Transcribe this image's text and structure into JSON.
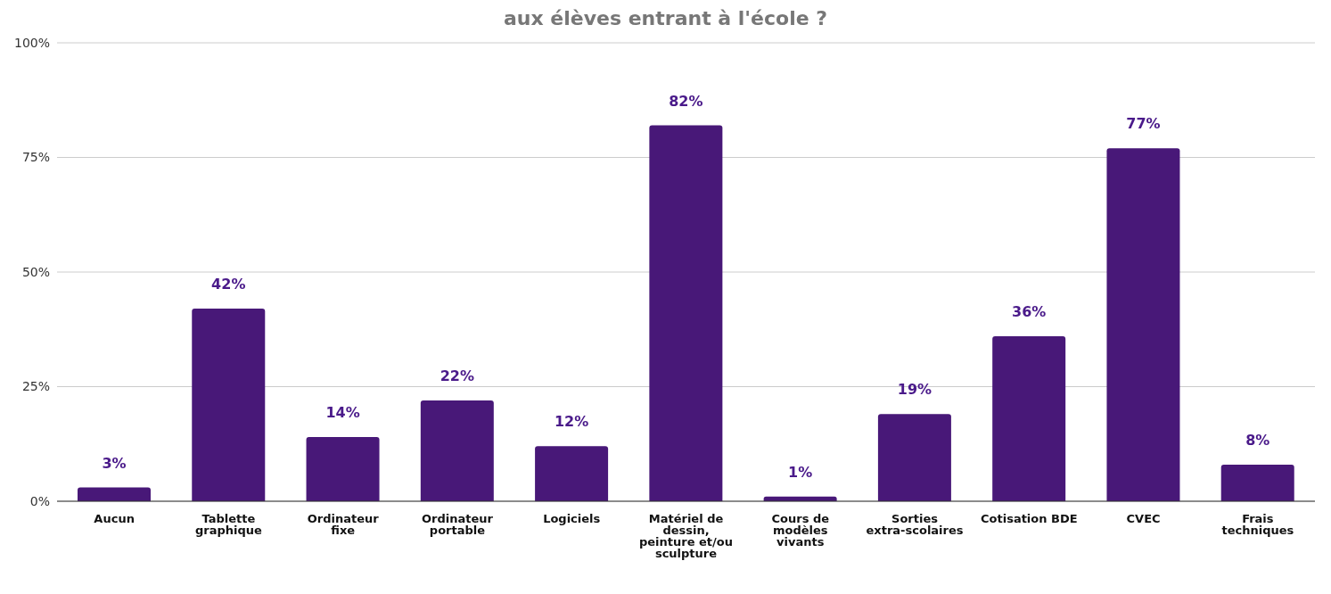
{
  "chart_data": {
    "type": "bar",
    "title": "aux élèves entrant à l'école ?",
    "categories": [
      "Aucun",
      "Tablette graphique",
      "Ordinateur fixe",
      "Ordinateur portable",
      "Logiciels",
      "Matériel de dessin, peinture et/ou sculpture",
      "Cours de modèles vivants",
      "Sorties extra-scolaires",
      "Cotisation BDE",
      "CVEC",
      "Frais techniques"
    ],
    "values": [
      3,
      42,
      14,
      22,
      12,
      82,
      1,
      19,
      36,
      77,
      8
    ],
    "value_labels": [
      "3%",
      "42%",
      "14%",
      "22%",
      "12%",
      "82%",
      "1%",
      "19%",
      "36%",
      "77%",
      "8%"
    ],
    "color": "#481878",
    "ylim": [
      0,
      100
    ],
    "yticks": [
      {
        "value": 0,
        "label": "0%"
      },
      {
        "value": 25,
        "label": "25%"
      },
      {
        "value": 50,
        "label": "50%"
      },
      {
        "value": 75,
        "label": "75%"
      },
      {
        "value": 100,
        "label": "100%"
      }
    ],
    "grid": "y"
  }
}
